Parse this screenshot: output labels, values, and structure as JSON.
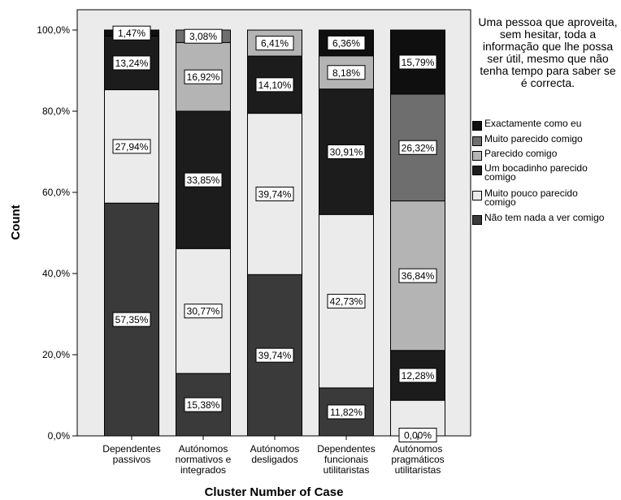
{
  "chart_data": {
    "type": "bar",
    "stacked": true,
    "percent": true,
    "xlabel": "Cluster Number of Case",
    "ylabel": "Count",
    "ylim": [
      0,
      100
    ],
    "yticks": [
      "0,0%",
      "20,0%",
      "40,0%",
      "60,0%",
      "80,0%",
      "100,0%"
    ],
    "grid": false,
    "legend_position": "right",
    "legend_title": "Uma pessoa que aproveita, sem hesitar, toda a informação que lhe possa ser útil, mesmo que não tenha tempo para saber se é correcta.",
    "categories": [
      [
        "Dependentes",
        "passivos"
      ],
      [
        "Autónomos",
        "normativos e",
        "integrados"
      ],
      [
        "Autónomos",
        "desligados"
      ],
      [
        "Dependentes",
        "funcionais",
        "utilitaristas"
      ],
      [
        "Autónomos",
        "pragmáticos",
        "utilitaristas"
      ]
    ],
    "series": [
      {
        "name": "Não tem nada a ver comigo",
        "color": "#3a3a3a",
        "values": [
          57.35,
          15.38,
          39.74,
          11.82,
          0.0
        ],
        "labels": [
          "57,35%",
          "15,38%",
          "39,74%",
          "11,82%",
          "0,00%"
        ]
      },
      {
        "name": "Muito pouco parecido comigo",
        "color": "#ebebeb",
        "values": [
          27.94,
          30.77,
          39.74,
          42.73,
          8.77
        ],
        "labels": [
          "27,94%",
          "30,77%",
          "39,74%",
          "42,73%",
          ""
        ]
      },
      {
        "name": "Um bocadinho parecido comigo",
        "color": "#1c1c1c",
        "values": [
          13.24,
          33.85,
          14.1,
          30.91,
          12.28
        ],
        "labels": [
          "13,24%",
          "33,85%",
          "14,10%",
          "30,91%",
          "12,28%"
        ]
      },
      {
        "name": "Parecido comigo",
        "color": "#b4b4b4",
        "values": [
          0.0,
          16.92,
          6.41,
          8.18,
          36.84
        ],
        "labels": [
          "",
          "16,92%",
          "6,41%",
          "8,18%",
          "36,84%"
        ]
      },
      {
        "name": "Muito parecido comigo",
        "color": "#6e6e6e",
        "values": [
          0.0,
          3.08,
          0.0,
          0.0,
          26.32
        ],
        "labels": [
          "",
          "3,08%",
          "",
          "",
          "26,32%"
        ]
      },
      {
        "name": "Exactamente como eu",
        "color": "#0f0f0f",
        "values": [
          1.47,
          0.0,
          0.0,
          6.36,
          15.79
        ],
        "labels": [
          "1,47%",
          "",
          "",
          "6,36%",
          "15,79%"
        ]
      }
    ],
    "legend_order": [
      "Exactamente como eu",
      "Muito parecido comigo",
      "Parecido comigo",
      "Um bocadinho parecido comigo",
      "Muito pouco parecido comigo",
      "Não tem nada a ver comigo"
    ]
  }
}
